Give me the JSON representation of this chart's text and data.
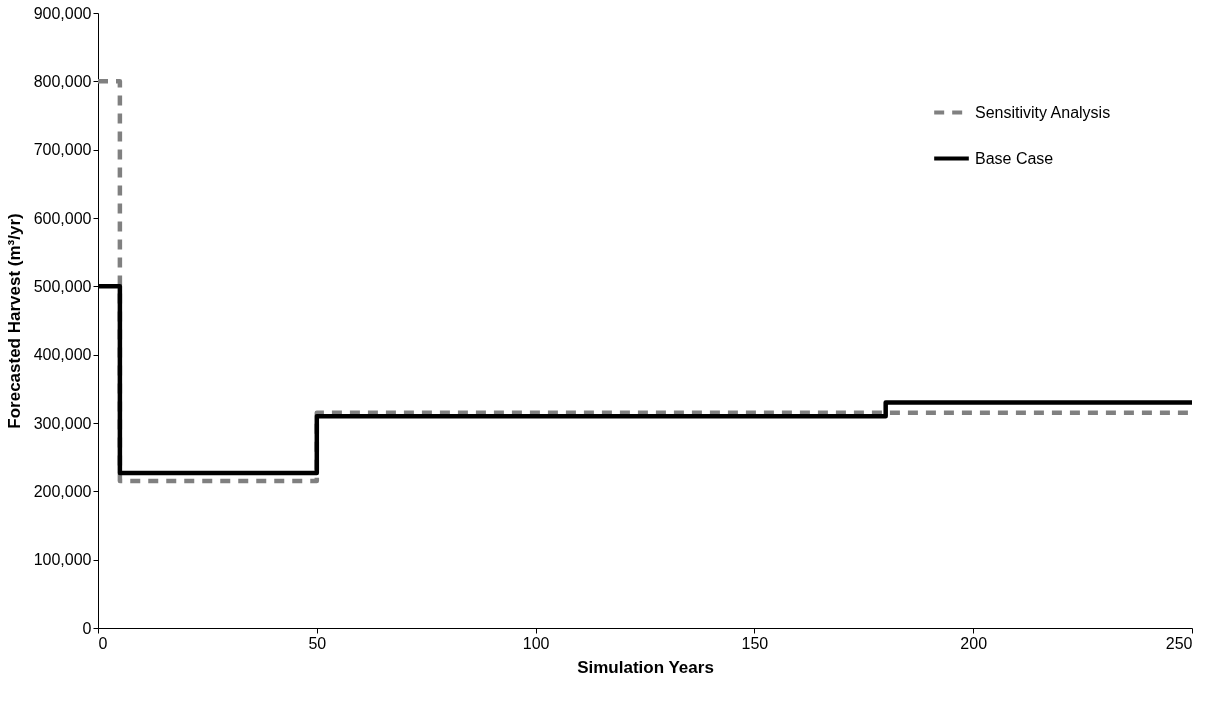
{
  "chart_data": {
    "type": "step",
    "xlabel": "Simulation Years",
    "ylabel": "Forecasted Harvest (m³/yr)",
    "xlim": [
      0,
      250
    ],
    "xticks": [
      0,
      50,
      100,
      150,
      200,
      250
    ],
    "ylim": [
      0,
      900000
    ],
    "yticks": [
      {
        "value": 0,
        "label": "0"
      },
      {
        "value": 100000,
        "label": "100,000"
      },
      {
        "value": 200000,
        "label": "200,000"
      },
      {
        "value": 300000,
        "label": "300,000"
      },
      {
        "value": 400000,
        "label": "400,000"
      },
      {
        "value": 500000,
        "label": "500,000"
      },
      {
        "value": 600000,
        "label": "600,000"
      },
      {
        "value": 700000,
        "label": "700,000"
      },
      {
        "value": 800000,
        "label": "800,000"
      },
      {
        "value": 900000,
        "label": "900,000"
      }
    ],
    "grid": false,
    "legend": "top right",
    "series": [
      {
        "name": "Sensitivity Analysis",
        "color": "#808080",
        "line_style": "dashed",
        "x": [
          0,
          5,
          50,
          250
        ],
        "values": [
          800000,
          215000,
          315000,
          315000
        ]
      },
      {
        "name": "Base Case",
        "color": "#000000",
        "line_style": "solid",
        "x": [
          0,
          5,
          50,
          180,
          250
        ],
        "values": [
          500000,
          227000,
          310000,
          330000,
          330000
        ]
      }
    ]
  }
}
